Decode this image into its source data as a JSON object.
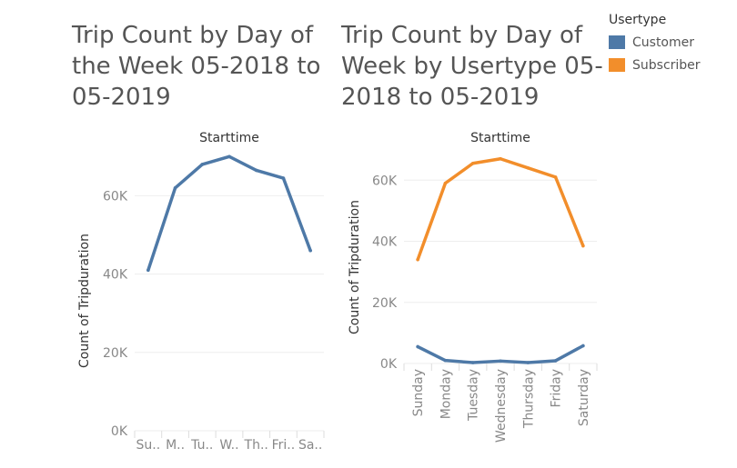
{
  "legend": {
    "title": "Usertype",
    "items": [
      {
        "label": "Customer",
        "color": "#4e79a7"
      },
      {
        "label": "Subscriber",
        "color": "#f28e2b"
      }
    ]
  },
  "chart_data": [
    {
      "type": "line",
      "title_lines": [
        "Trip  Count by Day of",
        "the Week 05-2018 to",
        "05-2019"
      ],
      "header": "Starttime",
      "ylabel": "Count of Tripduration",
      "ylim": [
        0,
        71000
      ],
      "yticks": [
        0,
        20000,
        40000,
        60000
      ],
      "ytick_labels": [
        "0K",
        "20K",
        "40K",
        "60K"
      ],
      "categories": [
        "Sunday",
        "Monday",
        "Tuesday",
        "Wednesday",
        "Thursday",
        "Friday",
        "Saturday"
      ],
      "xtick_labels": [
        "Su..",
        "M..",
        "Tu..",
        "W..",
        "Th..",
        "Fri..",
        "Sa.."
      ],
      "series": [
        {
          "color": "#4e79a7",
          "values": [
            41000,
            62000,
            68000,
            70000,
            66500,
            64500,
            46000
          ]
        }
      ]
    },
    {
      "type": "line",
      "title_lines": [
        "Trip Count by Day of",
        "Week by Usertype 05-",
        "2018 to 05-2019"
      ],
      "header": "Starttime",
      "ylabel": "Count of Tripduration",
      "ylim": [
        0,
        69000
      ],
      "yticks": [
        0,
        20000,
        40000,
        60000
      ],
      "ytick_labels": [
        "0K",
        "20K",
        "40K",
        "60K"
      ],
      "categories": [
        "Sunday",
        "Monday",
        "Tuesday",
        "Wednesday",
        "Thursday",
        "Friday",
        "Saturday"
      ],
      "xtick_labels": [
        "Sunday",
        "Monday",
        "Tuesday",
        "Wednesday",
        "Thursday",
        "Friday",
        "Saturday"
      ],
      "series": [
        {
          "name": "Customer",
          "color": "#4e79a7",
          "values": [
            5500,
            1000,
            300,
            800,
            300,
            900,
            5800
          ]
        },
        {
          "name": "Subscriber",
          "color": "#f28e2b",
          "values": [
            34000,
            59000,
            65500,
            67000,
            64000,
            61000,
            38500
          ]
        }
      ]
    }
  ]
}
